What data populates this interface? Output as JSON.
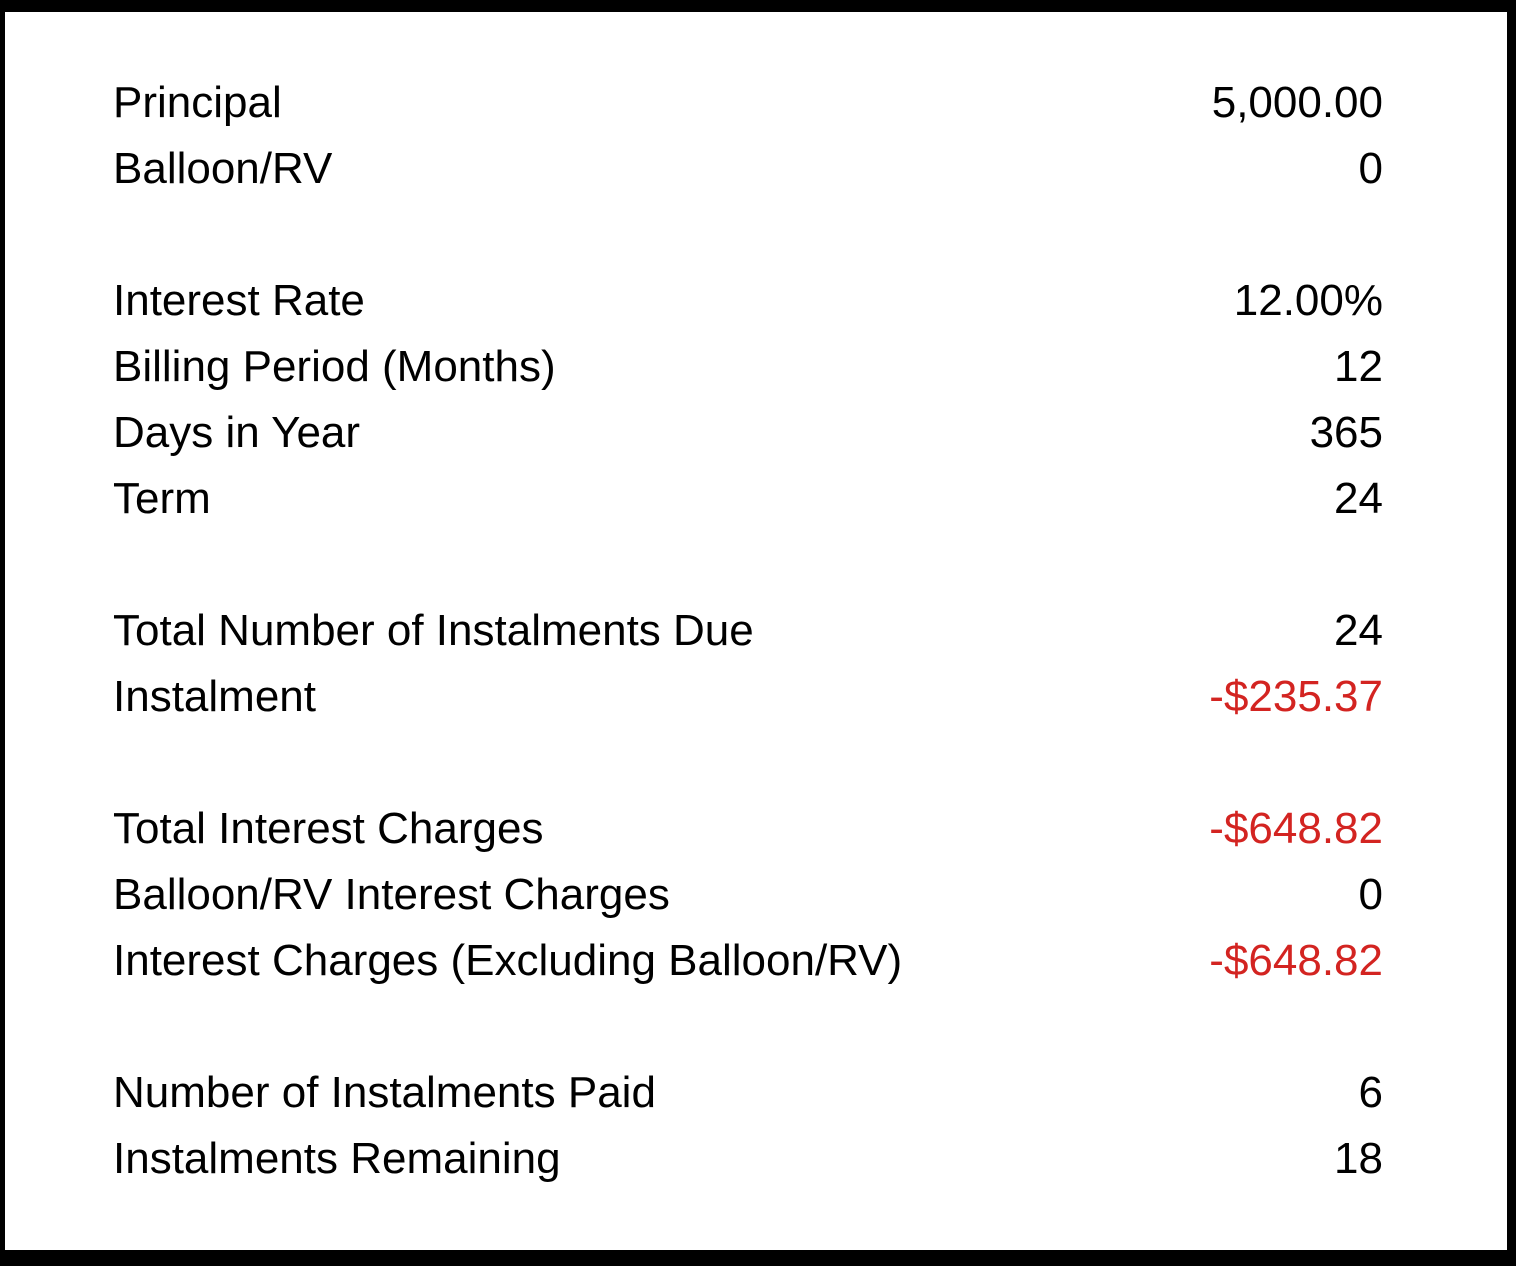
{
  "colors": {
    "background_border": "#000000",
    "panel_background": "#ffffff",
    "text": "#000000",
    "negative_value": "#d32421"
  },
  "table": {
    "rows": [
      {
        "label": "Principal",
        "value": "5,000.00",
        "negative": false
      },
      {
        "label": "Balloon/RV",
        "value": "0",
        "negative": false
      },
      {
        "spacer": true
      },
      {
        "label": "Interest Rate",
        "value": "12.00%",
        "negative": false
      },
      {
        "label": "Billing Period (Months)",
        "value": "12",
        "negative": false
      },
      {
        "label": "Days in Year",
        "value": "365",
        "negative": false
      },
      {
        "label": "Term",
        "value": "24",
        "negative": false
      },
      {
        "spacer": true
      },
      {
        "label": "Total Number of Instalments Due",
        "value": "24",
        "negative": false
      },
      {
        "label": "Instalment",
        "value": "-$235.37",
        "negative": true
      },
      {
        "spacer": true
      },
      {
        "label": "Total Interest Charges",
        "value": "-$648.82",
        "negative": true
      },
      {
        "label": "Balloon/RV Interest Charges",
        "value": "0",
        "negative": false
      },
      {
        "label": "Interest Charges (Excluding Balloon/RV)",
        "value": "-$648.82",
        "negative": true
      },
      {
        "spacer": true
      },
      {
        "label": "Number of Instalments Paid",
        "value": "6",
        "negative": false
      },
      {
        "label": "Instalments Remaining",
        "value": "18",
        "negative": false
      }
    ]
  }
}
